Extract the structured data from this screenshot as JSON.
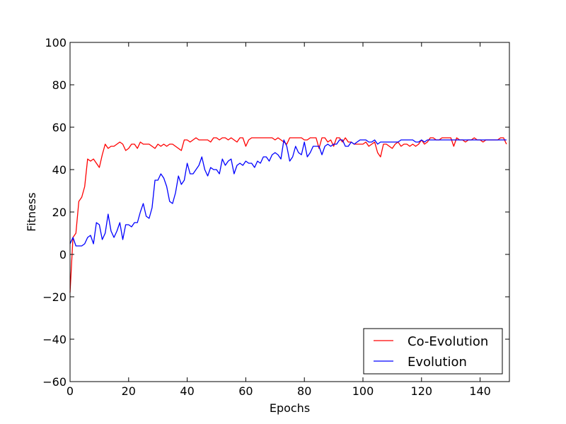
{
  "chart_data": {
    "type": "line",
    "title": "",
    "xlabel": "Epochs",
    "ylabel": "Fitness",
    "xlim": [
      0,
      150
    ],
    "ylim": [
      -60,
      100
    ],
    "xticks": [
      0,
      20,
      40,
      60,
      80,
      100,
      120,
      140
    ],
    "yticks": [
      -60,
      -40,
      -20,
      0,
      20,
      40,
      60,
      80,
      100
    ],
    "xtick_labels": [
      "0",
      "20",
      "40",
      "60",
      "80",
      "100",
      "120",
      "140"
    ],
    "ytick_labels": [
      "−60",
      "−40",
      "−20",
      "0",
      "20",
      "40",
      "60",
      "80",
      "100"
    ],
    "grid": false,
    "legend_position": "lower-right",
    "series": [
      {
        "name": "Co-Evolution",
        "color": "#ff0000",
        "x": [
          0,
          1,
          2,
          3,
          4,
          5,
          6,
          7,
          8,
          9,
          10,
          11,
          12,
          13,
          14,
          15,
          16,
          17,
          18,
          19,
          20,
          21,
          22,
          23,
          24,
          25,
          26,
          27,
          28,
          29,
          30,
          31,
          32,
          33,
          34,
          35,
          36,
          37,
          38,
          39,
          40,
          41,
          42,
          43,
          44,
          45,
          46,
          47,
          48,
          49,
          50,
          51,
          52,
          53,
          54,
          55,
          56,
          57,
          58,
          59,
          60,
          61,
          62,
          63,
          64,
          65,
          66,
          67,
          68,
          69,
          70,
          71,
          72,
          73,
          74,
          75,
          76,
          77,
          78,
          79,
          80,
          81,
          82,
          83,
          84,
          85,
          86,
          87,
          88,
          89,
          90,
          91,
          92,
          93,
          94,
          95,
          96,
          97,
          98,
          99,
          100,
          101,
          102,
          103,
          104,
          105,
          106,
          107,
          108,
          109,
          110,
          111,
          112,
          113,
          114,
          115,
          116,
          117,
          118,
          119,
          120,
          121,
          122,
          123,
          124,
          125,
          126,
          127,
          128,
          129,
          130,
          131,
          132,
          133,
          134,
          135,
          136,
          137,
          138,
          139,
          140,
          141,
          142,
          143,
          144,
          145,
          146,
          147,
          148,
          149
        ],
        "values": [
          -18,
          8,
          10,
          25,
          27,
          32,
          45,
          44,
          45,
          43,
          41,
          47,
          52,
          50,
          51,
          51,
          52,
          53,
          52,
          49,
          50,
          52,
          52,
          50,
          53,
          52,
          52,
          52,
          51,
          50,
          52,
          51,
          52,
          51,
          52,
          52,
          51,
          50,
          49,
          54,
          54,
          53,
          54,
          55,
          54,
          54,
          54,
          54,
          53,
          55,
          55,
          54,
          55,
          55,
          54,
          55,
          54,
          53,
          55,
          55,
          51,
          54,
          55,
          55,
          55,
          55,
          55,
          55,
          55,
          55,
          54,
          55,
          54,
          53,
          52,
          55,
          55,
          55,
          55,
          55,
          54,
          54,
          55,
          55,
          55,
          50,
          55,
          55,
          53,
          54,
          51,
          55,
          55,
          53,
          55,
          53,
          53,
          52,
          52,
          52,
          52,
          53,
          51,
          52,
          53,
          48,
          46,
          52,
          52,
          51,
          50,
          52,
          53,
          51,
          52,
          52,
          51,
          52,
          51,
          52,
          54,
          52,
          53,
          55,
          55,
          54,
          54,
          55,
          55,
          55,
          55,
          51,
          55,
          54,
          54,
          53,
          54,
          54,
          55,
          54,
          54,
          53,
          54,
          54,
          54,
          54,
          54,
          55,
          55,
          52
        ]
      },
      {
        "name": "Evolution",
        "color": "#0000ff",
        "x": [
          0,
          1,
          2,
          3,
          4,
          5,
          6,
          7,
          8,
          9,
          10,
          11,
          12,
          13,
          14,
          15,
          16,
          17,
          18,
          19,
          20,
          21,
          22,
          23,
          24,
          25,
          26,
          27,
          28,
          29,
          30,
          31,
          32,
          33,
          34,
          35,
          36,
          37,
          38,
          39,
          40,
          41,
          42,
          43,
          44,
          45,
          46,
          47,
          48,
          49,
          50,
          51,
          52,
          53,
          54,
          55,
          56,
          57,
          58,
          59,
          60,
          61,
          62,
          63,
          64,
          65,
          66,
          67,
          68,
          69,
          70,
          71,
          72,
          73,
          74,
          75,
          76,
          77,
          78,
          79,
          80,
          81,
          82,
          83,
          84,
          85,
          86,
          87,
          88,
          89,
          90,
          91,
          92,
          93,
          94,
          95,
          96,
          97,
          98,
          99,
          100,
          101,
          102,
          103,
          104,
          105,
          106,
          107,
          108,
          109,
          110,
          111,
          112,
          113,
          114,
          115,
          116,
          117,
          118,
          119,
          120,
          121,
          122,
          123,
          124,
          125,
          126,
          127,
          128,
          129,
          130,
          131,
          132,
          133,
          134,
          135,
          136,
          137,
          138,
          139,
          140,
          141,
          142,
          143,
          144,
          145,
          146,
          147,
          148,
          149
        ],
        "values": [
          5,
          8,
          4,
          4,
          4,
          5,
          8,
          9,
          5,
          15,
          14,
          7,
          10,
          19,
          11,
          8,
          11,
          15,
          7,
          14,
          14,
          13,
          15,
          15,
          20,
          24,
          18,
          17,
          22,
          35,
          35,
          38,
          36,
          32,
          25,
          24,
          29,
          37,
          33,
          35,
          43,
          38,
          38,
          40,
          42,
          46,
          40,
          37,
          41,
          40,
          40,
          38,
          45,
          42,
          44,
          45,
          38,
          42,
          43,
          42,
          44,
          43,
          43,
          41,
          44,
          43,
          46,
          46,
          44,
          47,
          48,
          47,
          45,
          54,
          51,
          44,
          46,
          51,
          48,
          47,
          53,
          46,
          48,
          51,
          51,
          51,
          47,
          51,
          52,
          51,
          52,
          52,
          54,
          54,
          51,
          51,
          53,
          52,
          53,
          54,
          54,
          54,
          53,
          53,
          54,
          52,
          53,
          53,
          53,
          53,
          53,
          53,
          53,
          54,
          54,
          54,
          54,
          54,
          53,
          53,
          54,
          53,
          54,
          54,
          54,
          54,
          54,
          54,
          54,
          54,
          54,
          54,
          54,
          54,
          54,
          54,
          54,
          54,
          54,
          54,
          54,
          54,
          54,
          54,
          54,
          54,
          54,
          54,
          54,
          54
        ]
      }
    ]
  }
}
